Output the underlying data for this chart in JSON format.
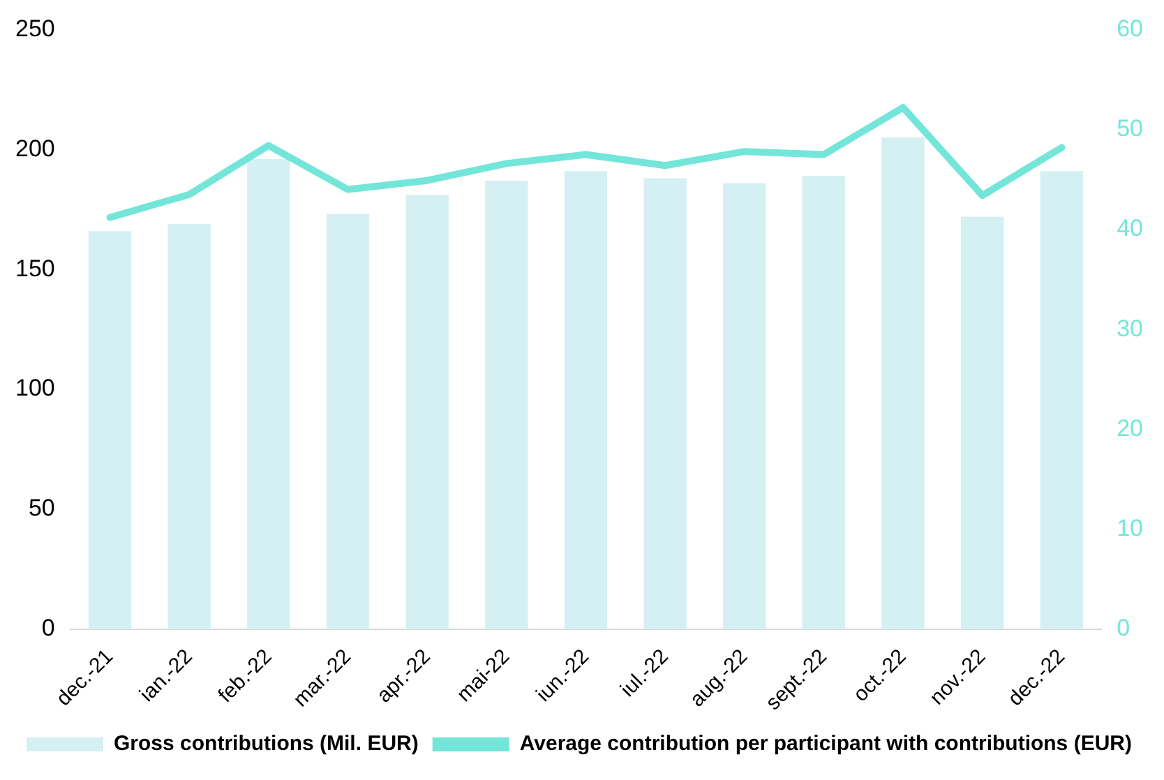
{
  "chart_data": {
    "type": "bar",
    "categories": [
      "dec.-21",
      "ian.-22",
      "feb.-22",
      "mar.-22",
      "apr.-22",
      "mai-22",
      "iun.-22",
      "iul.-22",
      "aug.-22",
      "sept.-22",
      "oct.-22",
      "nov.-22",
      "dec.-22"
    ],
    "series": [
      {
        "name": "Gross contributions (Mil. EUR)",
        "color": "#d4f0f3",
        "values": [
          166,
          169,
          196,
          173,
          181,
          187,
          191,
          188,
          186,
          189,
          205,
          172,
          191
        ]
      },
      {
        "name": "Average contribution per participant with contributions (EUR)",
        "type": "line",
        "axis": "y2",
        "color": "#73e6d9",
        "values": [
          41.2,
          43.5,
          48.4,
          44.0,
          44.9,
          46.6,
          47.5,
          46.4,
          47.8,
          47.5,
          52.2,
          43.4,
          48.2
        ]
      }
    ],
    "ylim": [
      0,
      250
    ],
    "yticks": [
      0,
      50,
      100,
      150,
      200,
      250
    ],
    "y2lim": [
      0,
      60
    ],
    "y2ticks": [
      0,
      10,
      20,
      30,
      40,
      50,
      60
    ],
    "grid": false,
    "legend": "bottom",
    "marker": "none"
  }
}
